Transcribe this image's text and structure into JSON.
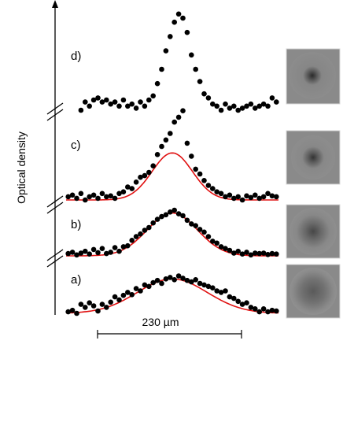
{
  "chart_data": {
    "type": "scatter",
    "ylabel": "Optical density",
    "scale_bar": {
      "label": "230 µm",
      "length_um": 230
    },
    "panels": [
      {
        "label": "a)",
        "fit": true,
        "fit_params": {
          "amp": 0.46,
          "center": 0.5,
          "sigma": 0.165,
          "base": 0.0
        },
        "x": [
          0.01,
          0.03,
          0.05,
          0.07,
          0.09,
          0.11,
          0.13,
          0.15,
          0.17,
          0.19,
          0.21,
          0.23,
          0.25,
          0.27,
          0.29,
          0.31,
          0.33,
          0.35,
          0.37,
          0.39,
          0.41,
          0.43,
          0.45,
          0.47,
          0.49,
          0.51,
          0.53,
          0.55,
          0.57,
          0.59,
          0.61,
          0.63,
          0.65,
          0.67,
          0.69,
          0.71,
          0.73,
          0.75,
          0.77,
          0.79,
          0.81,
          0.83,
          0.85,
          0.87,
          0.89,
          0.91,
          0.93,
          0.95,
          0.97,
          0.99
        ],
        "y": [
          0.02,
          0.04,
          0.0,
          0.12,
          0.08,
          0.14,
          0.1,
          0.03,
          0.12,
          0.08,
          0.15,
          0.22,
          0.18,
          0.24,
          0.28,
          0.25,
          0.33,
          0.3,
          0.38,
          0.36,
          0.41,
          0.44,
          0.4,
          0.46,
          0.48,
          0.45,
          0.5,
          0.47,
          0.44,
          0.42,
          0.45,
          0.4,
          0.38,
          0.36,
          0.34,
          0.3,
          0.28,
          0.3,
          0.22,
          0.2,
          0.16,
          0.12,
          0.14,
          0.08,
          0.06,
          0.02,
          0.06,
          0.02,
          0.04,
          0.03
        ]
      },
      {
        "label": "b)",
        "fit": true,
        "fit_params": {
          "amp": 0.94,
          "center": 0.5,
          "sigma": 0.118,
          "base": 0.0
        },
        "x": [
          0.01,
          0.03,
          0.05,
          0.07,
          0.09,
          0.11,
          0.13,
          0.15,
          0.17,
          0.19,
          0.21,
          0.23,
          0.25,
          0.27,
          0.29,
          0.31,
          0.33,
          0.35,
          0.37,
          0.39,
          0.41,
          0.43,
          0.45,
          0.47,
          0.49,
          0.51,
          0.53,
          0.55,
          0.57,
          0.59,
          0.61,
          0.63,
          0.65,
          0.67,
          0.69,
          0.71,
          0.73,
          0.75,
          0.77,
          0.79,
          0.81,
          0.83,
          0.85,
          0.87,
          0.89,
          0.91,
          0.93,
          0.95,
          0.97,
          0.99
        ],
        "y": [
          0.05,
          0.08,
          0.02,
          0.06,
          0.1,
          0.04,
          0.14,
          0.07,
          0.16,
          0.05,
          0.08,
          0.18,
          0.1,
          0.2,
          0.22,
          0.34,
          0.42,
          0.48,
          0.56,
          0.62,
          0.72,
          0.8,
          0.86,
          0.9,
          0.96,
          1.0,
          0.92,
          0.88,
          0.78,
          0.7,
          0.66,
          0.58,
          0.52,
          0.42,
          0.32,
          0.28,
          0.2,
          0.16,
          0.12,
          0.06,
          0.1,
          0.04,
          0.08,
          0.02,
          0.06,
          0.05,
          0.06,
          0.03,
          0.05,
          0.04
        ]
      },
      {
        "label": "c)",
        "fit": true,
        "fit_params": {
          "amp": 0.58,
          "center": 0.5,
          "sigma": 0.095,
          "base": 0.0
        },
        "x": [
          0.01,
          0.03,
          0.05,
          0.07,
          0.09,
          0.11,
          0.13,
          0.15,
          0.17,
          0.19,
          0.21,
          0.23,
          0.25,
          0.27,
          0.29,
          0.31,
          0.33,
          0.35,
          0.37,
          0.39,
          0.41,
          0.43,
          0.45,
          0.47,
          0.49,
          0.51,
          0.53,
          0.55,
          0.57,
          0.59,
          0.61,
          0.63,
          0.65,
          0.67,
          0.69,
          0.71,
          0.73,
          0.75,
          0.77,
          0.79,
          0.81,
          0.83,
          0.85,
          0.87,
          0.89,
          0.91,
          0.93,
          0.95,
          0.97,
          0.99
        ],
        "y": [
          0.04,
          0.06,
          0.02,
          0.08,
          0.0,
          0.04,
          0.06,
          0.02,
          0.08,
          0.04,
          0.05,
          0.02,
          0.08,
          0.1,
          0.16,
          0.14,
          0.22,
          0.28,
          0.3,
          0.34,
          0.42,
          0.56,
          0.66,
          0.74,
          0.82,
          0.96,
          1.02,
          1.1,
          0.7,
          0.54,
          0.38,
          0.32,
          0.24,
          0.18,
          0.14,
          0.1,
          0.08,
          0.04,
          0.06,
          0.02,
          0.04,
          0.0,
          0.05,
          0.03,
          0.06,
          0.02,
          0.04,
          0.08,
          0.05,
          0.04
        ]
      },
      {
        "label": "d)",
        "fit": false,
        "x": [
          0.07,
          0.09,
          0.11,
          0.13,
          0.15,
          0.17,
          0.19,
          0.21,
          0.23,
          0.25,
          0.27,
          0.29,
          0.31,
          0.33,
          0.35,
          0.37,
          0.39,
          0.41,
          0.43,
          0.45,
          0.47,
          0.49,
          0.51,
          0.53,
          0.55,
          0.57,
          0.59,
          0.61,
          0.63,
          0.65,
          0.67,
          0.69,
          0.71,
          0.73,
          0.75,
          0.77,
          0.79,
          0.81,
          0.83,
          0.85,
          0.87,
          0.89,
          0.91,
          0.93,
          0.95,
          0.97,
          0.99
        ],
        "y": [
          0.0,
          0.08,
          0.04,
          0.1,
          0.12,
          0.08,
          0.1,
          0.06,
          0.08,
          0.04,
          0.1,
          0.04,
          0.06,
          0.02,
          0.08,
          0.04,
          0.1,
          0.14,
          0.26,
          0.4,
          0.58,
          0.72,
          0.86,
          0.94,
          0.9,
          0.76,
          0.54,
          0.4,
          0.28,
          0.16,
          0.12,
          0.06,
          0.04,
          0.0,
          0.06,
          0.02,
          0.04,
          0.0,
          0.02,
          0.04,
          0.06,
          0.02,
          0.04,
          0.06,
          0.04,
          0.12,
          0.08
        ]
      }
    ]
  }
}
